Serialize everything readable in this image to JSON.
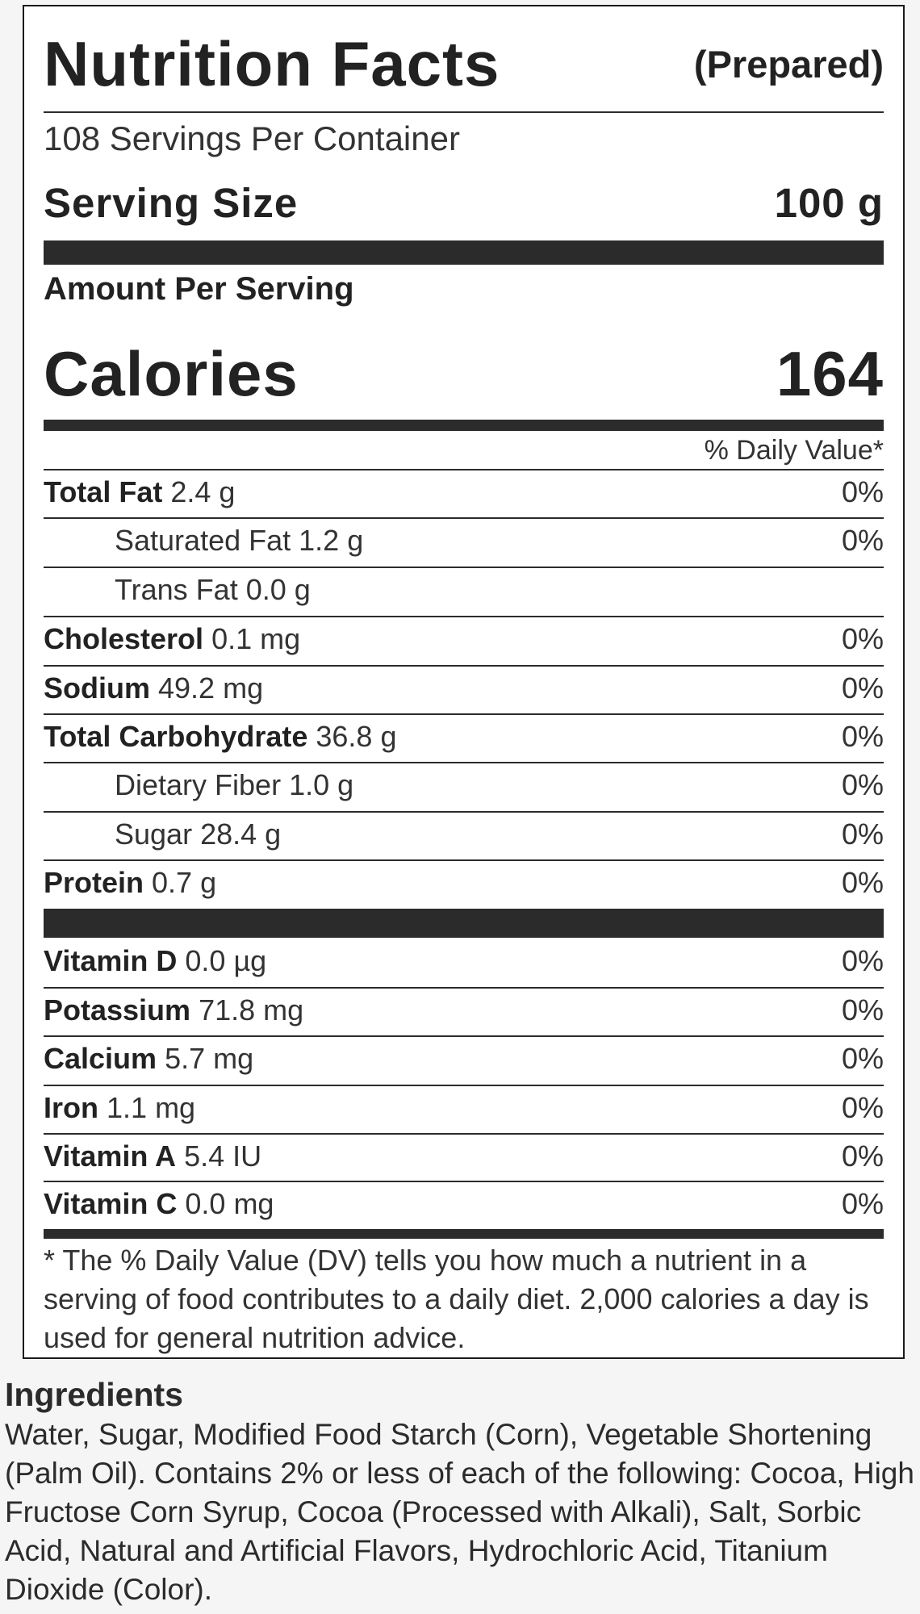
{
  "label": {
    "title": "Nutrition Facts",
    "subtitle": "(Prepared)",
    "servings_per_container": "108 Servings Per Container",
    "serving_size_label": "Serving Size",
    "serving_size_value": "100 g",
    "amount_per_serving": "Amount Per Serving",
    "calories_label": "Calories",
    "calories_value": "164",
    "daily_value_header": "% Daily Value*",
    "nutrients": [
      {
        "name": "Total Fat",
        "amount": "2.4 g",
        "dv": "0%"
      },
      {
        "name": "Saturated Fat",
        "amount": "1.2 g",
        "dv": "0%"
      },
      {
        "name": "Trans Fat",
        "amount": "0.0 g",
        "dv": ""
      },
      {
        "name": "Cholesterol",
        "amount": "0.1 mg",
        "dv": "0%"
      },
      {
        "name": "Sodium",
        "amount": "49.2 mg",
        "dv": "0%"
      },
      {
        "name": "Total Carbohydrate",
        "amount": "36.8 g",
        "dv": "0%"
      },
      {
        "name": "Dietary Fiber",
        "amount": "1.0 g",
        "dv": "0%"
      },
      {
        "name": "Sugar",
        "amount": "28.4 g",
        "dv": "0%"
      },
      {
        "name": "Protein",
        "amount": "0.7 g",
        "dv": "0%"
      }
    ],
    "vitamins": [
      {
        "name": "Vitamin D",
        "amount": "0.0 µg",
        "dv": "0%"
      },
      {
        "name": "Potassium",
        "amount": "71.8 mg",
        "dv": "0%"
      },
      {
        "name": "Calcium",
        "amount": "5.7 mg",
        "dv": "0%"
      },
      {
        "name": "Iron",
        "amount": "1.1 mg",
        "dv": "0%"
      },
      {
        "name": "Vitamin A",
        "amount": "5.4 IU",
        "dv": "0%"
      },
      {
        "name": "Vitamin C",
        "amount": "0.0 mg",
        "dv": "0%"
      }
    ],
    "footnote": "* The % Daily Value (DV) tells you how much a nutrient in a serving of food contributes to a daily diet. 2,000 calories a day is used for general nutrition advice."
  },
  "ingredients": {
    "title": "Ingredients",
    "text": "Water, Sugar, Modified Food Starch (Corn), Vegetable Shortening (Palm Oil). Contains 2% or less of each of the following: Cocoa, High Fructose Corn Syrup, Cocoa (Processed with Alkali), Salt, Sorbic Acid, Natural and Artificial Flavors, Hydrochloric Acid, Titanium Dioxide (Color)."
  }
}
